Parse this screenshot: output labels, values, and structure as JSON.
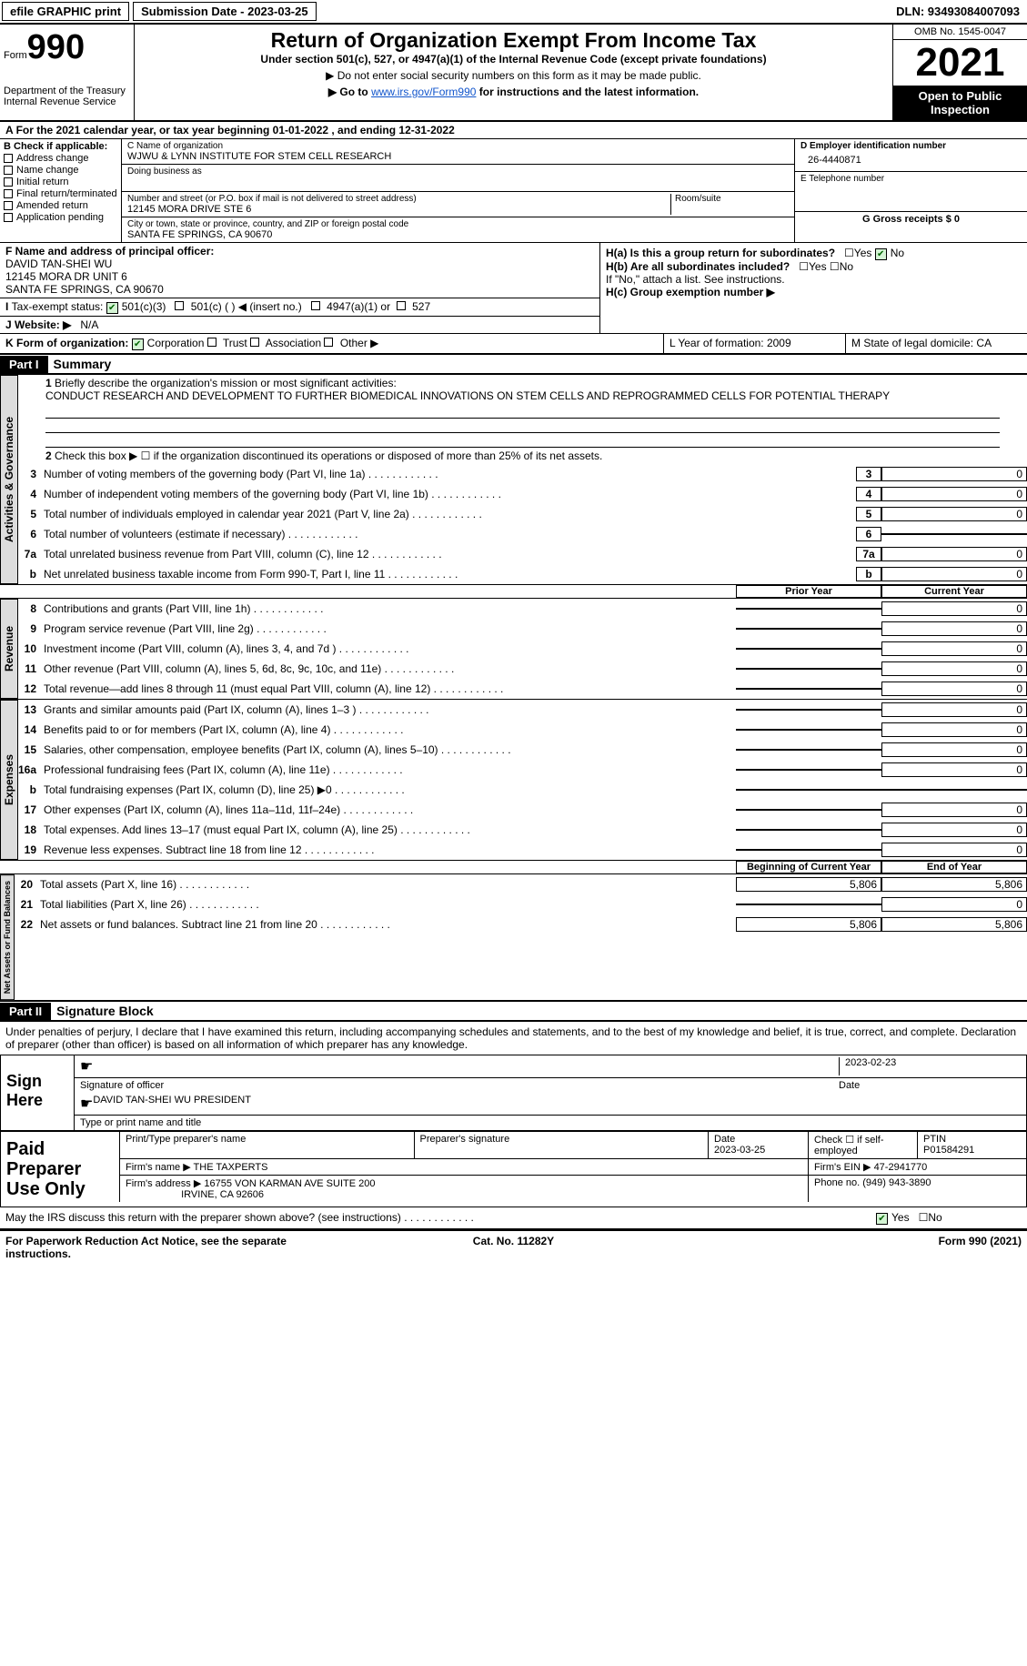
{
  "topbar": {
    "efile": "efile GRAPHIC print",
    "subdate_label": "Submission Date - 2023-03-25",
    "dln": "DLN: 93493084007093"
  },
  "header": {
    "form_label": "Form",
    "form_num": "990",
    "dept": "Department of the Treasury\nInternal Revenue Service",
    "title": "Return of Organization Exempt From Income Tax",
    "subtitle": "Under section 501(c), 527, or 4947(a)(1) of the Internal Revenue Code (except private foundations)",
    "instr1": "▶ Do not enter social security numbers on this form as it may be made public.",
    "instr2_pre": "▶ Go to ",
    "instr2_link": "www.irs.gov/Form990",
    "instr2_post": " for instructions and the latest information.",
    "omb": "OMB No. 1545-0047",
    "year": "2021",
    "open": "Open to Public Inspection"
  },
  "A": {
    "text": "For the 2021 calendar year, or tax year beginning 01-01-2022   , and ending 12-31-2022"
  },
  "B": {
    "label": "B Check if applicable:",
    "items": [
      "Address change",
      "Name change",
      "Initial return",
      "Final return/terminated",
      "Amended return",
      "Application pending"
    ]
  },
  "C": {
    "name_label": "C Name of organization",
    "name": "WJWU & LYNN INSTITUTE FOR STEM CELL RESEARCH",
    "dba_label": "Doing business as",
    "addr_label": "Number and street (or P.O. box if mail is not delivered to street address)",
    "room_label": "Room/suite",
    "addr": "12145 MORA DRIVE STE 6",
    "city_label": "City or town, state or province, country, and ZIP or foreign postal code",
    "city": "SANTA FE SPRINGS, CA  90670"
  },
  "D": {
    "label": "D Employer identification number",
    "val": "26-4440871"
  },
  "E": {
    "label": "E Telephone number",
    "val": ""
  },
  "G": {
    "label": "G Gross receipts $ 0"
  },
  "F": {
    "label": "F  Name and address of principal officer:",
    "name": "DAVID TAN-SHEI WU",
    "addr1": "12145 MORA DR UNIT 6",
    "addr2": "SANTA FE SPRINGS, CA  90670"
  },
  "H": {
    "a": "H(a)  Is this a group return for subordinates?",
    "b": "H(b)  Are all subordinates included?",
    "b2": "If \"No,\" attach a list. See instructions.",
    "c": "H(c)  Group exemption number ▶"
  },
  "I": {
    "label": "Tax-exempt status:",
    "opts": [
      "501(c)(3)",
      "501(c) (  ) ◀ (insert no.)",
      "4947(a)(1) or",
      "527"
    ]
  },
  "J": {
    "label": "J   Website: ▶",
    "val": "N/A"
  },
  "K": {
    "label": "K Form of organization:",
    "opts": [
      "Corporation",
      "Trust",
      "Association",
      "Other ▶"
    ]
  },
  "L": {
    "label": "L Year of formation: 2009"
  },
  "M": {
    "label": "M State of legal domicile: CA"
  },
  "part1": {
    "hdr": "Part I",
    "title": "Summary",
    "l1_label": "Briefly describe the organization's mission or most significant activities:",
    "l1_text": "CONDUCT RESEARCH AND DEVELOPMENT TO FURTHER BIOMEDICAL INNOVATIONS ON STEM CELLS AND REPROGRAMMED CELLS FOR POTENTIAL THERAPY",
    "l2": "Check this box ▶ ☐ if the organization discontinued its operations or disposed of more than 25% of its net assets.",
    "lines_ag": [
      {
        "n": "3",
        "t": "Number of voting members of the governing body (Part VI, line 1a)",
        "v": "0"
      },
      {
        "n": "4",
        "t": "Number of independent voting members of the governing body (Part VI, line 1b)",
        "v": "0"
      },
      {
        "n": "5",
        "t": "Total number of individuals employed in calendar year 2021 (Part V, line 2a)",
        "v": "0"
      },
      {
        "n": "6",
        "t": "Total number of volunteers (estimate if necessary)",
        "v": ""
      },
      {
        "n": "7a",
        "t": "Total unrelated business revenue from Part VIII, column (C), line 12",
        "v": "0"
      },
      {
        "n": "b",
        "t": "Net unrelated business taxable income from Form 990-T, Part I, line 11",
        "v": "0"
      }
    ],
    "col_prior": "Prior Year",
    "col_curr": "Current Year",
    "rev": [
      {
        "n": "8",
        "t": "Contributions and grants (Part VIII, line 1h)",
        "p": "",
        "c": "0"
      },
      {
        "n": "9",
        "t": "Program service revenue (Part VIII, line 2g)",
        "p": "",
        "c": "0"
      },
      {
        "n": "10",
        "t": "Investment income (Part VIII, column (A), lines 3, 4, and 7d )",
        "p": "",
        "c": "0"
      },
      {
        "n": "11",
        "t": "Other revenue (Part VIII, column (A), lines 5, 6d, 8c, 9c, 10c, and 11e)",
        "p": "",
        "c": "0"
      },
      {
        "n": "12",
        "t": "Total revenue—add lines 8 through 11 (must equal Part VIII, column (A), line 12)",
        "p": "",
        "c": "0"
      }
    ],
    "exp": [
      {
        "n": "13",
        "t": "Grants and similar amounts paid (Part IX, column (A), lines 1–3 )",
        "p": "",
        "c": "0"
      },
      {
        "n": "14",
        "t": "Benefits paid to or for members (Part IX, column (A), line 4)",
        "p": "",
        "c": "0"
      },
      {
        "n": "15",
        "t": "Salaries, other compensation, employee benefits (Part IX, column (A), lines 5–10)",
        "p": "",
        "c": "0"
      },
      {
        "n": "16a",
        "t": "Professional fundraising fees (Part IX, column (A), line 11e)",
        "p": "",
        "c": "0"
      },
      {
        "n": "b",
        "t": "Total fundraising expenses (Part IX, column (D), line 25) ▶0",
        "shadeP": true,
        "shadeC": true
      },
      {
        "n": "17",
        "t": "Other expenses (Part IX, column (A), lines 11a–11d, 11f–24e)",
        "p": "",
        "c": "0"
      },
      {
        "n": "18",
        "t": "Total expenses. Add lines 13–17 (must equal Part IX, column (A), line 25)",
        "p": "",
        "c": "0"
      },
      {
        "n": "19",
        "t": "Revenue less expenses. Subtract line 18 from line 12",
        "p": "",
        "c": "0"
      }
    ],
    "col_beg": "Beginning of Current Year",
    "col_end": "End of Year",
    "na": [
      {
        "n": "20",
        "t": "Total assets (Part X, line 16)",
        "p": "5,806",
        "c": "5,806"
      },
      {
        "n": "21",
        "t": "Total liabilities (Part X, line 26)",
        "p": "",
        "c": "0"
      },
      {
        "n": "22",
        "t": "Net assets or fund balances. Subtract line 21 from line 20",
        "p": "5,806",
        "c": "5,806"
      }
    ]
  },
  "part2": {
    "hdr": "Part II",
    "title": "Signature Block",
    "decl": "Under penalties of perjury, I declare that I have examined this return, including accompanying schedules and statements, and to the best of my knowledge and belief, it is true, correct, and complete. Declaration of preparer (other than officer) is based on all information of which preparer has any knowledge.",
    "sign_here": "Sign Here",
    "sig_off": "Signature of officer",
    "sig_date": "2023-02-23",
    "date_label": "Date",
    "name_title": "DAVID TAN-SHEI WU  PRESIDENT",
    "type_label": "Type or print name and title",
    "paid": "Paid Preparer Use Only",
    "prep_name_label": "Print/Type preparer's name",
    "prep_sig_label": "Preparer's signature",
    "prep_date_label": "Date",
    "prep_date": "2023-03-25",
    "check_self": "Check ☐ if self-employed",
    "ptin_label": "PTIN",
    "ptin": "P01584291",
    "firm_name_label": "Firm's name    ▶",
    "firm_name": "THE TAXPERTS",
    "firm_ein_label": "Firm's EIN ▶",
    "firm_ein": "47-2941770",
    "firm_addr_label": "Firm's address ▶",
    "firm_addr1": "16755 VON KARMAN AVE SUITE 200",
    "firm_addr2": "IRVINE, CA  92606",
    "phone_label": "Phone no.",
    "phone": "(949) 943-3890",
    "may_irs": "May the IRS discuss this return with the preparer shown above? (see instructions)"
  },
  "footer": {
    "pra": "For Paperwork Reduction Act Notice, see the separate instructions.",
    "cat": "Cat. No. 11282Y",
    "form": "Form 990 (2021)"
  },
  "vtabs": {
    "ag": "Activities & Governance",
    "rev": "Revenue",
    "exp": "Expenses",
    "na": "Net Assets or Fund Balances"
  },
  "yes": "Yes",
  "no": "No"
}
